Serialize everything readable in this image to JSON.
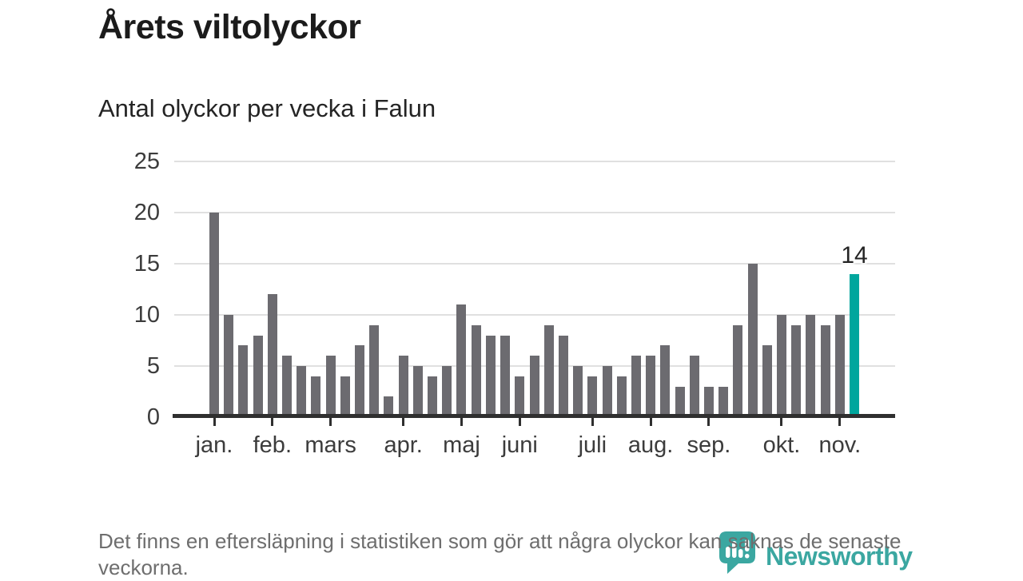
{
  "title": "Årets viltolyckor",
  "subtitle": "Antal olyckor per vecka i Falun",
  "footnote": "Det finns en eftersläpning i statistiken som gör att några olyckor kan saknas de senaste veckorna.",
  "logo": {
    "text": "Newsworthy"
  },
  "colors": {
    "ink": "#1b1b1b",
    "ink2": "#242424",
    "tick": "#3c3c3c",
    "muted": "#6e6e6e",
    "grid": "#e0e0e0",
    "axis": "#2f2f2f",
    "bar": "#6c6b70",
    "highlight": "#00a69d",
    "logo": "#3ba7a1"
  },
  "chart_data": {
    "type": "bar",
    "title": "Årets viltolyckor",
    "subtitle": "Antal olyckor per vecka i Falun",
    "x_unit": "vecka (week of year)",
    "ylabel": "Antal olyckor",
    "ylim": [
      0,
      25
    ],
    "y_ticks": [
      0,
      5,
      10,
      15,
      20,
      25
    ],
    "grid": true,
    "values": [
      20,
      10,
      7,
      8,
      12,
      6,
      5,
      4,
      6,
      4,
      7,
      9,
      2,
      6,
      5,
      4,
      5,
      11,
      9,
      8,
      8,
      4,
      6,
      9,
      8,
      5,
      4,
      5,
      4,
      6,
      6,
      7,
      3,
      6,
      3,
      3,
      9,
      15,
      7,
      10,
      9,
      10,
      9,
      10,
      14
    ],
    "highlight_index": 44,
    "highlight_label": "14",
    "month_ticks": [
      {
        "label": "jan.",
        "week": 1
      },
      {
        "label": "feb.",
        "week": 5
      },
      {
        "label": "mars",
        "week": 9
      },
      {
        "label": "apr.",
        "week": 14
      },
      {
        "label": "maj",
        "week": 18
      },
      {
        "label": "juni",
        "week": 22
      },
      {
        "label": "juli",
        "week": 27
      },
      {
        "label": "aug.",
        "week": 31
      },
      {
        "label": "sep.",
        "week": 35
      },
      {
        "label": "okt.",
        "week": 40
      },
      {
        "label": "nov.",
        "week": 44
      }
    ]
  }
}
